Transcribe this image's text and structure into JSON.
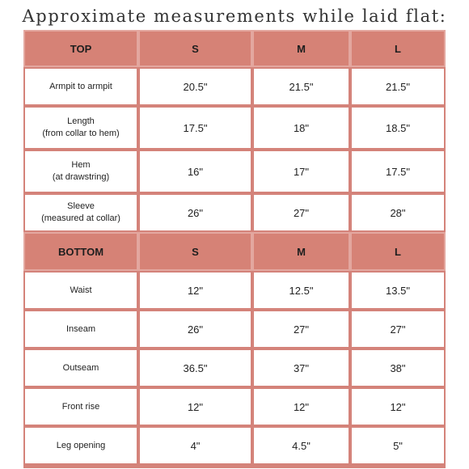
{
  "title": "Approximate measurements while laid flat:",
  "top": {
    "header": [
      "TOP",
      "S",
      "M",
      "L"
    ],
    "rows": [
      {
        "label": "Armpit to armpit",
        "values": [
          "20.5\"",
          "21.5\"",
          "21.5\""
        ]
      },
      {
        "label": "Length\n(from collar to hem)",
        "values": [
          "17.5\"",
          "18\"",
          "18.5\""
        ]
      },
      {
        "label": "Hem\n(at drawstring)",
        "values": [
          "16\"",
          "17\"",
          "17.5\""
        ]
      },
      {
        "label": "Sleeve\n(measured at collar)",
        "values": [
          "26\"",
          "27\"",
          "28\""
        ]
      }
    ]
  },
  "bottom": {
    "header": [
      "BOTTOM",
      "S",
      "M",
      "L"
    ],
    "rows": [
      {
        "label": "Waist",
        "values": [
          "12\"",
          "12.5\"",
          "13.5\""
        ]
      },
      {
        "label": "Inseam",
        "values": [
          "26\"",
          "27\"",
          "27\""
        ]
      },
      {
        "label": "Outseam",
        "values": [
          "36.5\"",
          "37\"",
          "38\""
        ]
      },
      {
        "label": "Front rise",
        "values": [
          "12\"",
          "12\"",
          "12\""
        ]
      },
      {
        "label": "Leg opening",
        "values": [
          "4\"",
          "4.5\"",
          "5\""
        ]
      }
    ]
  }
}
